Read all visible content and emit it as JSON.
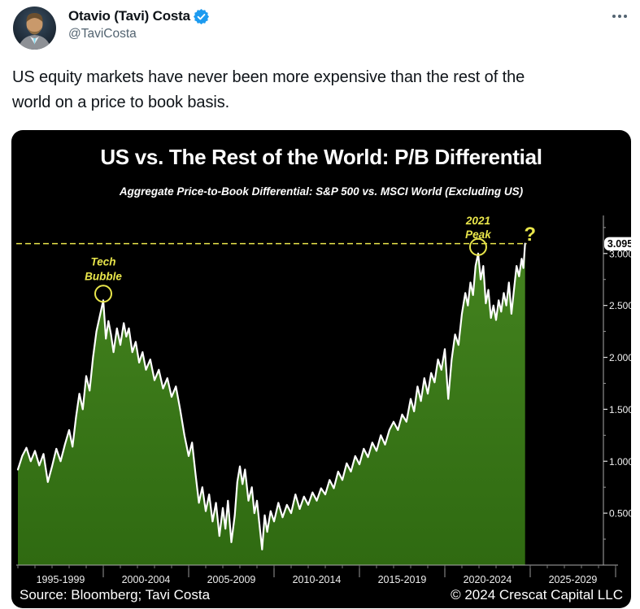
{
  "tweet": {
    "display_name": "Otavio (Tavi) Costa",
    "handle": "@TaviCosta",
    "verified_icon": "verified-badge-icon",
    "more_icon": "more-horizontal-icon",
    "body_lines": [
      "US equity markets have never been more expensive than the rest of the",
      "world on a price to book basis."
    ]
  },
  "chart": {
    "title": "US vs. The Rest of the World: P/B Differential",
    "subtitle": "Aggregate Price-to-Book Differential: S&P 500 vs. MSCI World (Excluding US)",
    "footer_left": "Source: Bloomberg; Tavi Costa",
    "footer_right": "© 2024 Crescat Capital LLC",
    "colors": {
      "background": "#000000",
      "fill_top": "#44831f",
      "fill_bottom": "#2f6a11",
      "line": "#ffffff",
      "annotation_yellow": "#e9e64b",
      "axis_gray": "#aaaaaa",
      "tick_label": "#f2f2f2",
      "badge_bg": "#ffffff",
      "badge_text": "#000000",
      "twitter_blue": "#1d9bf0"
    }
  },
  "chart_data": {
    "type": "area",
    "title": "US vs. The Rest of the World: P/B Differential",
    "subtitle": "Aggregate Price-to-Book Differential: S&P 500 vs. MSCI World (Excluding US)",
    "legend": "none",
    "grid": "off",
    "x_axis": {
      "labels": [
        "1995-1999",
        "2000-2004",
        "2005-2009",
        "2010-2014",
        "2015-2019",
        "2020-2024",
        "2025-2029"
      ],
      "band_center_years": [
        1997.5,
        2002.5,
        2007.5,
        2012.5,
        2017.5,
        2022.5,
        2027.5
      ],
      "separator_years": [
        2000,
        2005,
        2010,
        2015,
        2020,
        2025,
        2030
      ],
      "year_range": [
        1995,
        2030
      ]
    },
    "y_axis": {
      "tick_values": [
        0.5,
        1.0,
        1.5,
        2.0,
        2.5,
        3.0
      ],
      "tick_labels": [
        "0.5000",
        "1.0000",
        "1.5000",
        "2.0000",
        "2.5000",
        "3.0000"
      ],
      "minor_tick_step": 0.25,
      "range": [
        0,
        3.37
      ],
      "current_value_label": "3.0951",
      "side": "right"
    },
    "annotations": {
      "tech_bubble": {
        "lines": [
          "Tech",
          "Bubble"
        ],
        "year": 2000.0,
        "value": 2.55
      },
      "peak_2021": {
        "lines": [
          "2021",
          "Peak"
        ],
        "year": 2021.95,
        "value": 3.0
      },
      "current": {
        "label": "?",
        "year": 2024.7,
        "value": 3.0951
      },
      "dashed_line_value": 3.0951
    },
    "series": [
      {
        "name": "Aggregate P/B differential: S&P 500 vs. MSCI World (Excluding US)",
        "points": [
          [
            1995.0,
            0.92
          ],
          [
            1995.25,
            1.05
          ],
          [
            1995.5,
            1.13
          ],
          [
            1995.75,
            1.0
          ],
          [
            1996.0,
            1.1
          ],
          [
            1996.25,
            0.96
          ],
          [
            1996.5,
            1.07
          ],
          [
            1996.75,
            0.8
          ],
          [
            1997.0,
            0.95
          ],
          [
            1997.25,
            1.12
          ],
          [
            1997.5,
            1.0
          ],
          [
            1997.75,
            1.16
          ],
          [
            1998.0,
            1.3
          ],
          [
            1998.2,
            1.14
          ],
          [
            1998.4,
            1.42
          ],
          [
            1998.6,
            1.65
          ],
          [
            1998.8,
            1.5
          ],
          [
            1999.0,
            1.82
          ],
          [
            1999.2,
            1.68
          ],
          [
            1999.4,
            2.0
          ],
          [
            1999.6,
            2.25
          ],
          [
            1999.8,
            2.4
          ],
          [
            2000.0,
            2.55
          ],
          [
            2000.15,
            2.18
          ],
          [
            2000.3,
            2.35
          ],
          [
            2000.45,
            2.22
          ],
          [
            2000.6,
            2.05
          ],
          [
            2000.8,
            2.28
          ],
          [
            2001.0,
            2.12
          ],
          [
            2001.2,
            2.33
          ],
          [
            2001.35,
            2.2
          ],
          [
            2001.5,
            2.28
          ],
          [
            2001.7,
            2.05
          ],
          [
            2001.9,
            2.15
          ],
          [
            2002.1,
            1.95
          ],
          [
            2002.3,
            2.05
          ],
          [
            2002.5,
            1.88
          ],
          [
            2002.75,
            1.98
          ],
          [
            2003.0,
            1.78
          ],
          [
            2003.25,
            1.88
          ],
          [
            2003.5,
            1.7
          ],
          [
            2003.75,
            1.8
          ],
          [
            2004.0,
            1.62
          ],
          [
            2004.25,
            1.72
          ],
          [
            2004.5,
            1.5
          ],
          [
            2004.75,
            1.25
          ],
          [
            2005.0,
            1.05
          ],
          [
            2005.2,
            1.18
          ],
          [
            2005.4,
            0.88
          ],
          [
            2005.6,
            0.6
          ],
          [
            2005.8,
            0.75
          ],
          [
            2006.0,
            0.52
          ],
          [
            2006.2,
            0.68
          ],
          [
            2006.4,
            0.42
          ],
          [
            2006.6,
            0.6
          ],
          [
            2006.8,
            0.28
          ],
          [
            2007.0,
            0.55
          ],
          [
            2007.15,
            0.35
          ],
          [
            2007.3,
            0.62
          ],
          [
            2007.5,
            0.22
          ],
          [
            2007.7,
            0.48
          ],
          [
            2007.85,
            0.8
          ],
          [
            2008.0,
            0.95
          ],
          [
            2008.15,
            0.78
          ],
          [
            2008.3,
            0.92
          ],
          [
            2008.5,
            0.62
          ],
          [
            2008.7,
            0.75
          ],
          [
            2008.85,
            0.5
          ],
          [
            2009.0,
            0.62
          ],
          [
            2009.15,
            0.38
          ],
          [
            2009.3,
            0.15
          ],
          [
            2009.45,
            0.48
          ],
          [
            2009.6,
            0.32
          ],
          [
            2009.8,
            0.52
          ],
          [
            2010.0,
            0.42
          ],
          [
            2010.25,
            0.6
          ],
          [
            2010.5,
            0.46
          ],
          [
            2010.75,
            0.58
          ],
          [
            2011.0,
            0.5
          ],
          [
            2011.25,
            0.68
          ],
          [
            2011.5,
            0.54
          ],
          [
            2011.75,
            0.66
          ],
          [
            2012.0,
            0.58
          ],
          [
            2012.25,
            0.7
          ],
          [
            2012.5,
            0.62
          ],
          [
            2012.75,
            0.74
          ],
          [
            2013.0,
            0.68
          ],
          [
            2013.25,
            0.82
          ],
          [
            2013.5,
            0.74
          ],
          [
            2013.75,
            0.9
          ],
          [
            2014.0,
            0.82
          ],
          [
            2014.25,
            0.98
          ],
          [
            2014.5,
            0.9
          ],
          [
            2014.75,
            1.05
          ],
          [
            2015.0,
            0.97
          ],
          [
            2015.25,
            1.12
          ],
          [
            2015.5,
            1.04
          ],
          [
            2015.75,
            1.18
          ],
          [
            2016.0,
            1.1
          ],
          [
            2016.25,
            1.25
          ],
          [
            2016.5,
            1.16
          ],
          [
            2016.75,
            1.3
          ],
          [
            2017.0,
            1.38
          ],
          [
            2017.25,
            1.3
          ],
          [
            2017.5,
            1.45
          ],
          [
            2017.75,
            1.38
          ],
          [
            2018.0,
            1.6
          ],
          [
            2018.2,
            1.48
          ],
          [
            2018.4,
            1.72
          ],
          [
            2018.6,
            1.58
          ],
          [
            2018.8,
            1.8
          ],
          [
            2019.0,
            1.65
          ],
          [
            2019.2,
            1.85
          ],
          [
            2019.4,
            1.76
          ],
          [
            2019.6,
            1.98
          ],
          [
            2019.8,
            1.88
          ],
          [
            2020.0,
            2.08
          ],
          [
            2020.2,
            1.6
          ],
          [
            2020.4,
            1.98
          ],
          [
            2020.6,
            2.22
          ],
          [
            2020.8,
            2.12
          ],
          [
            2021.0,
            2.42
          ],
          [
            2021.2,
            2.62
          ],
          [
            2021.35,
            2.5
          ],
          [
            2021.5,
            2.72
          ],
          [
            2021.65,
            2.6
          ],
          [
            2021.8,
            2.88
          ],
          [
            2021.95,
            3.0
          ],
          [
            2022.1,
            2.75
          ],
          [
            2022.25,
            2.88
          ],
          [
            2022.4,
            2.52
          ],
          [
            2022.55,
            2.65
          ],
          [
            2022.7,
            2.38
          ],
          [
            2022.85,
            2.5
          ],
          [
            2023.0,
            2.36
          ],
          [
            2023.15,
            2.55
          ],
          [
            2023.3,
            2.44
          ],
          [
            2023.45,
            2.62
          ],
          [
            2023.6,
            2.5
          ],
          [
            2023.75,
            2.72
          ],
          [
            2023.9,
            2.42
          ],
          [
            2024.05,
            2.65
          ],
          [
            2024.2,
            2.88
          ],
          [
            2024.35,
            2.78
          ],
          [
            2024.5,
            2.95
          ],
          [
            2024.6,
            2.86
          ],
          [
            2024.7,
            3.0951
          ]
        ]
      }
    ]
  }
}
